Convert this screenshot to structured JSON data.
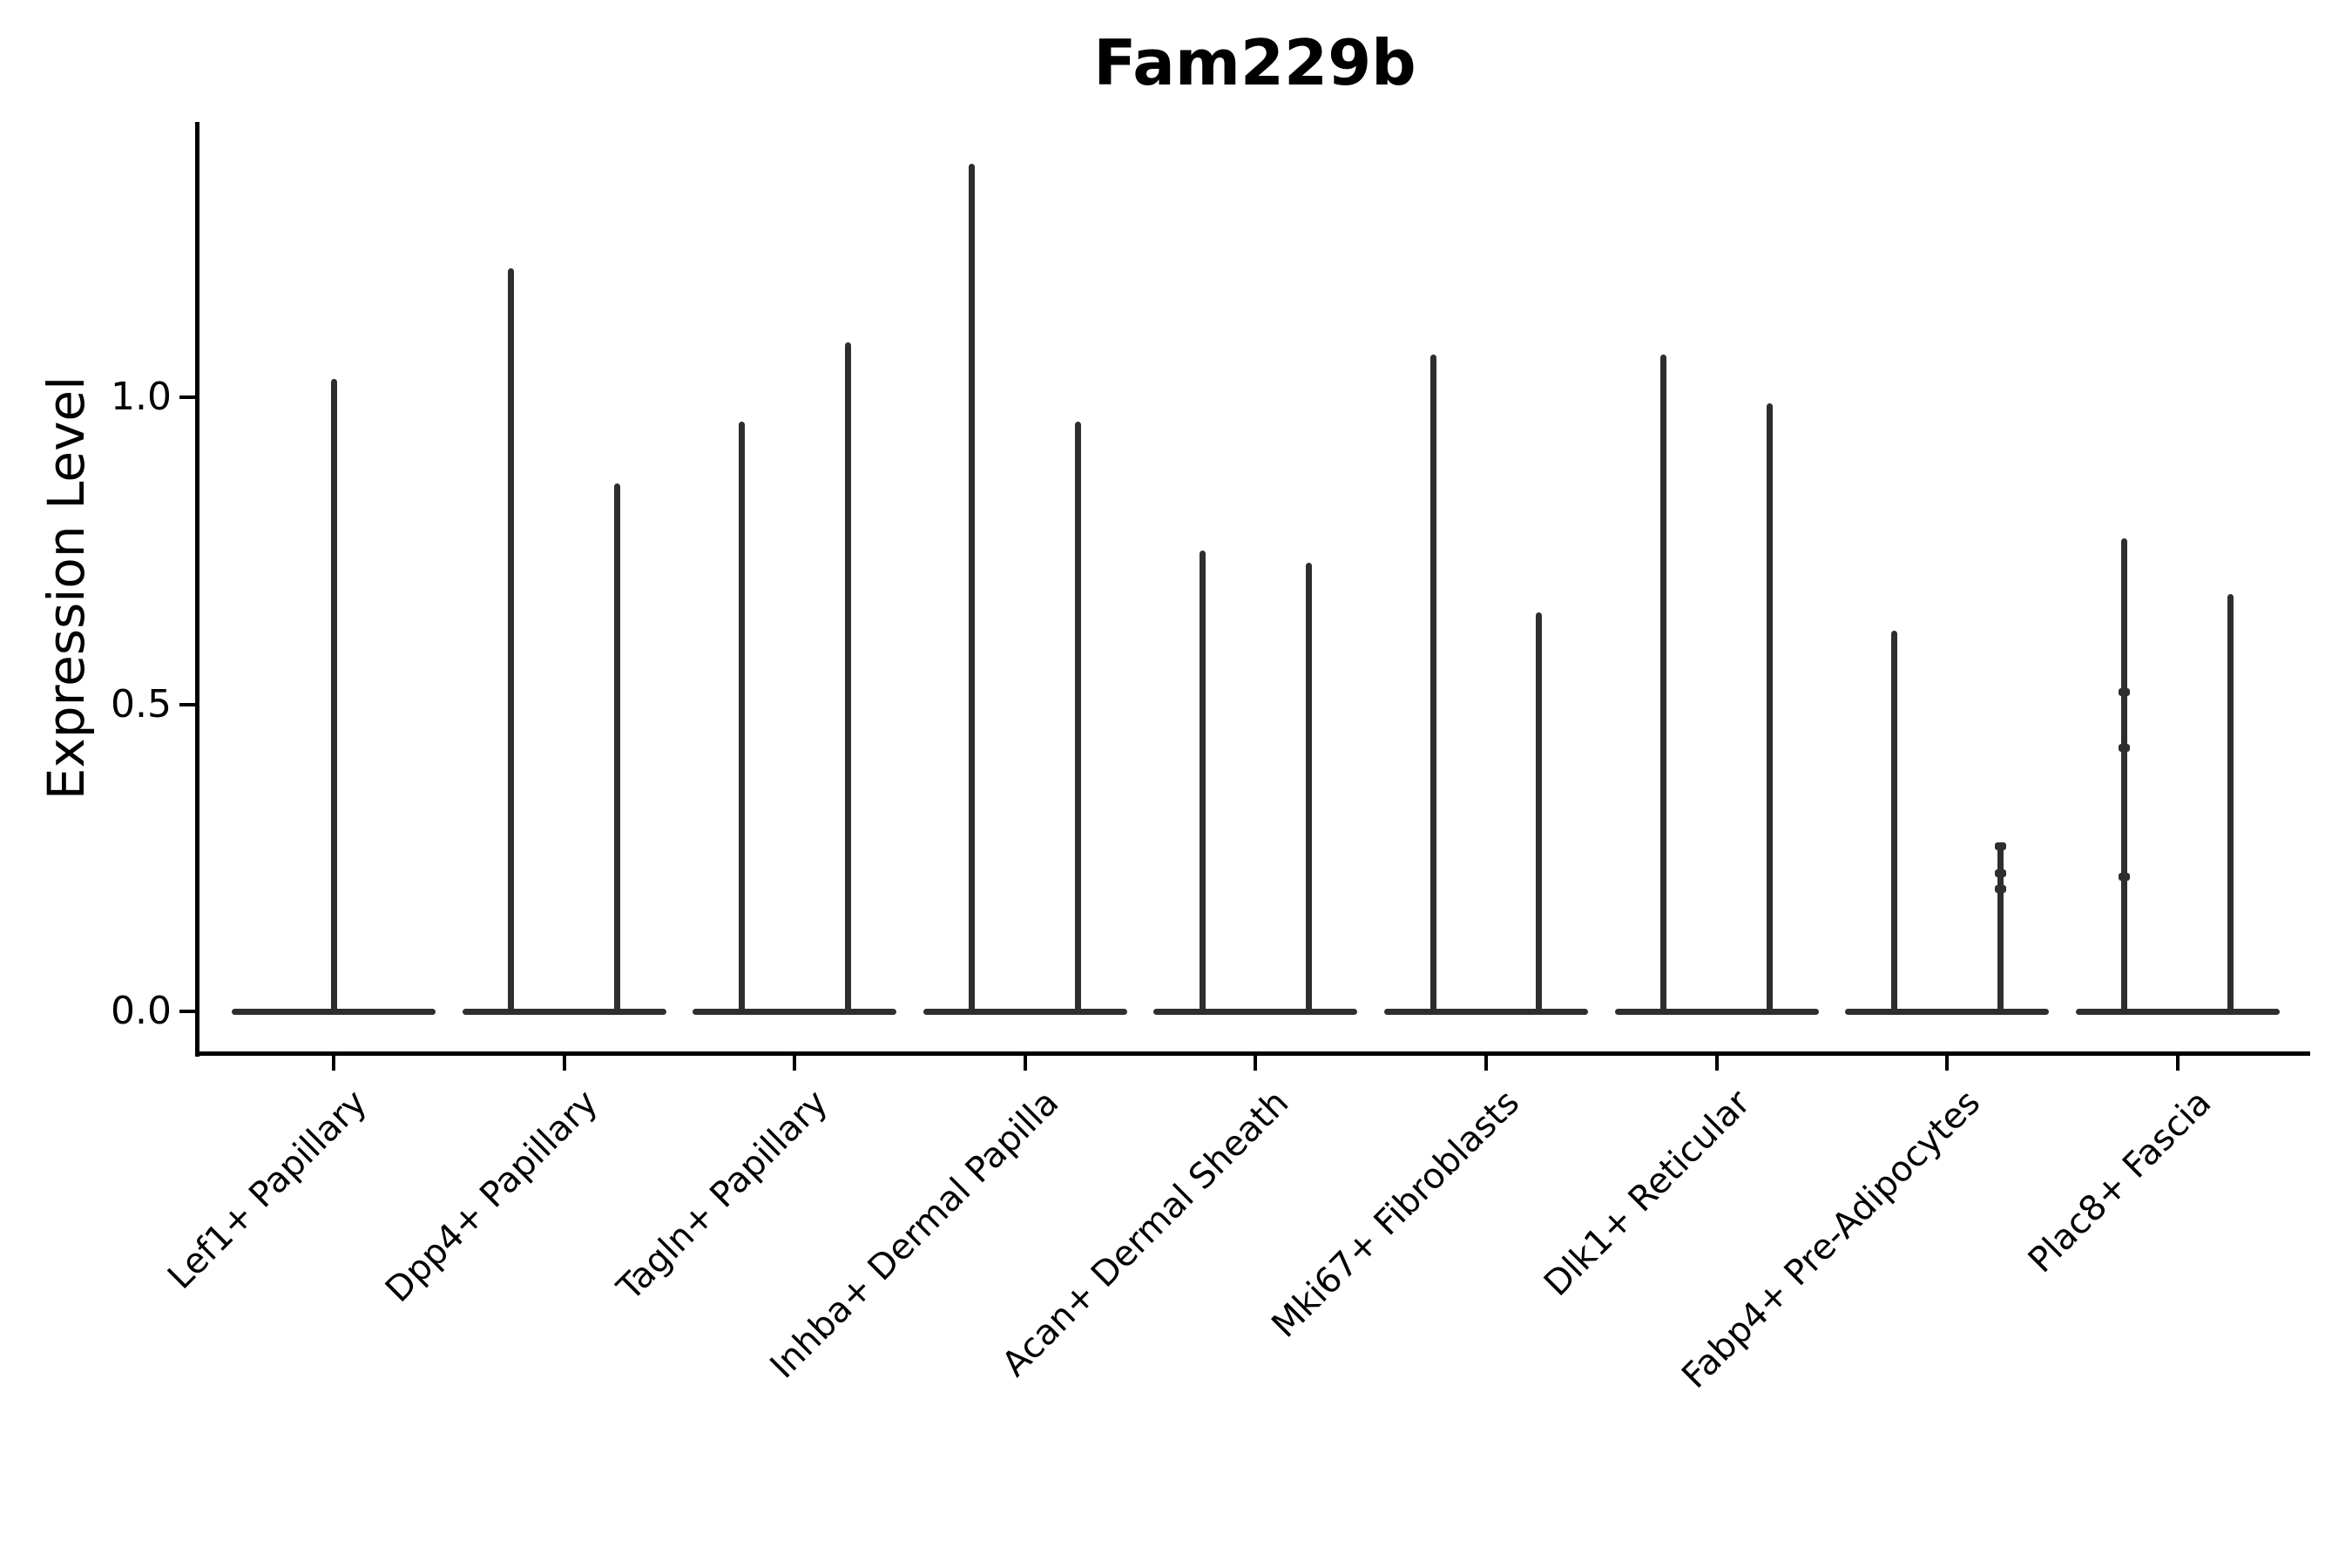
{
  "figure": {
    "background_color": "#ffffff",
    "violin_color": "#2e2e2e",
    "axis_color": "#000000",
    "text_color": "#000000"
  },
  "chart_data": {
    "type": "violin",
    "title": "Fam229b",
    "xlabel": "",
    "ylabel": "Expression Level",
    "ytick_labels": [
      "0.0",
      "0.5",
      "1.0"
    ],
    "ytick_values": [
      0.0,
      0.5,
      1.0
    ],
    "ylim": [
      -0.07,
      1.45
    ],
    "grid": false,
    "legend": null,
    "x_categories": [
      "Lef1+ Papillary",
      "Dpp4+ Papillary",
      "Tagln+ Papillary",
      "Inhba+ Dermal Papilla",
      "Acan+ Dermal Sheath",
      "Mki67+ Fibroblasts",
      "Dlk1+ Reticular",
      "Fabp4+ Pre-Adipocytes",
      "Plac8+ Fascia"
    ],
    "violin_style": "very thin spike-shaped violins (sparse single-cell expression) with a wide flat base at expression 0; first category has a single centered spike, all others have two spikes per category",
    "violins": [
      {
        "category": "Lef1+ Papillary",
        "spikes": [
          {
            "offset": 0,
            "max": 1.03,
            "markers": []
          }
        ]
      },
      {
        "category": "Dpp4+ Papillary",
        "spikes": [
          {
            "offset": -0.23,
            "max": 1.21,
            "markers": []
          },
          {
            "offset": 0.23,
            "max": 0.86,
            "markers": []
          }
        ]
      },
      {
        "category": "Tagln+ Papillary",
        "spikes": [
          {
            "offset": -0.23,
            "max": 0.96,
            "markers": []
          },
          {
            "offset": 0.23,
            "max": 1.09,
            "markers": []
          }
        ]
      },
      {
        "category": "Inhba+ Dermal Papilla",
        "spikes": [
          {
            "offset": -0.23,
            "max": 1.38,
            "markers": []
          },
          {
            "offset": 0.23,
            "max": 0.96,
            "markers": []
          }
        ]
      },
      {
        "category": "Acan+ Dermal Sheath",
        "spikes": [
          {
            "offset": -0.23,
            "max": 0.75,
            "markers": []
          },
          {
            "offset": 0.23,
            "max": 0.73,
            "markers": []
          }
        ]
      },
      {
        "category": "Mki67+ Fibroblasts",
        "spikes": [
          {
            "offset": -0.23,
            "max": 1.07,
            "markers": []
          },
          {
            "offset": 0.23,
            "max": 0.65,
            "markers": []
          }
        ]
      },
      {
        "category": "Dlk1+ Reticular",
        "spikes": [
          {
            "offset": -0.23,
            "max": 1.07,
            "markers": []
          },
          {
            "offset": 0.23,
            "max": 0.99,
            "markers": []
          }
        ]
      },
      {
        "category": "Fabp4+ Pre-Adipocytes",
        "spikes": [
          {
            "offset": -0.23,
            "max": 0.62,
            "markers": []
          },
          {
            "offset": 0.23,
            "max": 0.27,
            "markers": [
              0.27,
              0.225,
              0.2
            ]
          }
        ]
      },
      {
        "category": "Plac8+ Fascia",
        "spikes": [
          {
            "offset": -0.23,
            "max": 0.77,
            "markers": [
              0.52,
              0.43,
              0.22
            ]
          },
          {
            "offset": 0.23,
            "max": 0.68,
            "markers": []
          }
        ]
      }
    ]
  }
}
